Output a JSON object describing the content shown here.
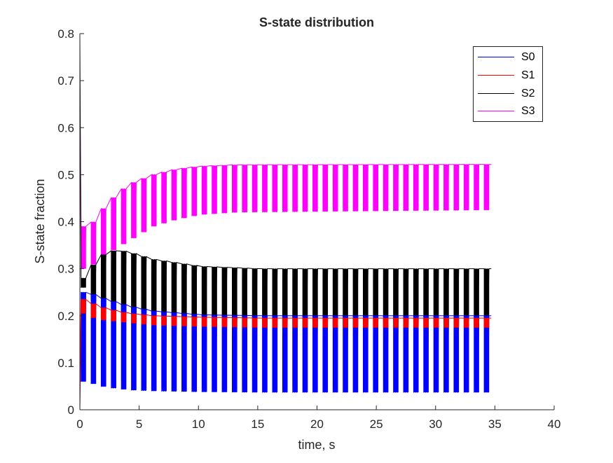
{
  "chart_data": {
    "type": "line",
    "title": "S-state distribution",
    "xlabel": "time, s",
    "ylabel": "S-state fraction",
    "xlim": [
      0,
      40
    ],
    "ylim": [
      0,
      0.8
    ],
    "xticks": [
      "0",
      "5",
      "10",
      "15",
      "20",
      "25",
      "30",
      "35",
      "40"
    ],
    "yticks": [
      "0",
      "0.1",
      "0.2",
      "0.3",
      "0.4",
      "0.5",
      "0.6",
      "0.7",
      "0.8"
    ],
    "grid": false,
    "legend_position": "top-right",
    "flash_period_s": 0.85,
    "t_end": 34.7,
    "series": [
      {
        "name": "S0",
        "color": "#0000ff",
        "start": 0.0,
        "upper_envelope": [
          [
            0.1,
            0.25
          ],
          [
            1.0,
            0.245
          ],
          [
            2.0,
            0.235
          ],
          [
            4.0,
            0.22
          ],
          [
            6.0,
            0.21
          ],
          [
            10.0,
            0.202
          ],
          [
            15.0,
            0.2
          ],
          [
            34.7,
            0.2
          ]
        ],
        "lower_envelope": [
          [
            0.1,
            0.06
          ],
          [
            1.0,
            0.055
          ],
          [
            2.0,
            0.048
          ],
          [
            4.0,
            0.042
          ],
          [
            6.0,
            0.04
          ],
          [
            10.0,
            0.038
          ],
          [
            15.0,
            0.037
          ],
          [
            34.7,
            0.037
          ]
        ]
      },
      {
        "name": "S1",
        "color": "#ff0000",
        "start": 0.0,
        "upper_envelope": [
          [
            0.1,
            0.235
          ],
          [
            1.0,
            0.225
          ],
          [
            2.0,
            0.215
          ],
          [
            4.0,
            0.205
          ],
          [
            6.0,
            0.2
          ],
          [
            10.0,
            0.197
          ],
          [
            15.0,
            0.195
          ],
          [
            34.7,
            0.195
          ]
        ],
        "lower_envelope": [
          [
            0.1,
            0.205
          ],
          [
            1.0,
            0.195
          ],
          [
            2.0,
            0.19
          ],
          [
            4.0,
            0.185
          ],
          [
            6.0,
            0.18
          ],
          [
            10.0,
            0.177
          ],
          [
            15.0,
            0.175
          ],
          [
            34.7,
            0.175
          ]
        ]
      },
      {
        "name": "S2",
        "color": "#000000",
        "start": 0.8,
        "upper_envelope": [
          [
            0.1,
            0.28
          ],
          [
            1.0,
            0.31
          ],
          [
            2.0,
            0.335
          ],
          [
            3.0,
            0.34
          ],
          [
            4.0,
            0.335
          ],
          [
            6.0,
            0.32
          ],
          [
            10.0,
            0.305
          ],
          [
            15.0,
            0.3
          ],
          [
            34.7,
            0.3
          ]
        ],
        "lower_envelope": [
          [
            0.1,
            0.26
          ],
          [
            1.0,
            0.23
          ],
          [
            2.0,
            0.22
          ],
          [
            4.0,
            0.205
          ],
          [
            6.0,
            0.2
          ],
          [
            10.0,
            0.198
          ],
          [
            15.0,
            0.197
          ],
          [
            34.7,
            0.197
          ]
        ]
      },
      {
        "name": "S3",
        "color": "#ff00ff",
        "start": 0.7,
        "upper_envelope": [
          [
            0.1,
            0.39
          ],
          [
            1.0,
            0.4
          ],
          [
            2.0,
            0.435
          ],
          [
            3.0,
            0.46
          ],
          [
            4.0,
            0.48
          ],
          [
            6.0,
            0.5
          ],
          [
            8.0,
            0.512
          ],
          [
            10.0,
            0.518
          ],
          [
            13.0,
            0.521
          ],
          [
            34.7,
            0.522
          ]
        ],
        "lower_envelope": [
          [
            0.1,
            0.3
          ],
          [
            1.0,
            0.31
          ],
          [
            2.0,
            0.33
          ],
          [
            3.0,
            0.345
          ],
          [
            4.0,
            0.36
          ],
          [
            5.0,
            0.375
          ],
          [
            6.0,
            0.39
          ],
          [
            8.0,
            0.405
          ],
          [
            10.0,
            0.415
          ],
          [
            13.0,
            0.42
          ],
          [
            34.7,
            0.425
          ]
        ]
      }
    ]
  }
}
